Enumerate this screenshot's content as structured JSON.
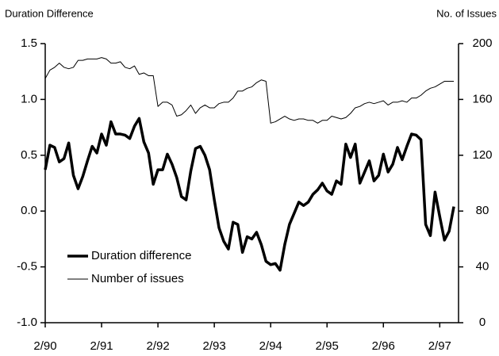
{
  "chart_data": {
    "type": "line",
    "y_label": "Duration Difference",
    "y2_label": "No. of Issues",
    "categories": [
      "2/90",
      null,
      null,
      null,
      null,
      null,
      null,
      null,
      null,
      null,
      null,
      null,
      "2/91",
      null,
      null,
      null,
      null,
      null,
      null,
      null,
      null,
      null,
      null,
      null,
      "2/92",
      null,
      null,
      null,
      null,
      null,
      null,
      null,
      null,
      null,
      null,
      null,
      "2/93",
      null,
      null,
      null,
      null,
      null,
      null,
      null,
      null,
      null,
      null,
      null,
      "2/94",
      null,
      null,
      null,
      null,
      null,
      null,
      null,
      null,
      null,
      null,
      null,
      "2/95",
      null,
      null,
      null,
      null,
      null,
      null,
      null,
      null,
      null,
      null,
      null,
      "2/96",
      null,
      null,
      null,
      null,
      null,
      null,
      null,
      null,
      null,
      null,
      null,
      "2/97",
      null,
      null,
      null
    ],
    "series": [
      {
        "name": "Duration difference",
        "color": "#000000",
        "width": 3.5,
        "axis": "y",
        "values": [
          0.37,
          0.59,
          0.57,
          0.44,
          0.47,
          0.61,
          0.32,
          0.2,
          0.31,
          0.45,
          0.58,
          0.52,
          0.69,
          0.59,
          0.8,
          0.69,
          0.69,
          0.68,
          0.65,
          0.76,
          0.83,
          0.62,
          0.52,
          0.24,
          0.37,
          0.37,
          0.51,
          0.42,
          0.3,
          0.13,
          0.1,
          0.36,
          0.56,
          0.58,
          0.5,
          0.37,
          0.1,
          -0.15,
          -0.27,
          -0.34,
          -0.1,
          -0.12,
          -0.37,
          -0.23,
          -0.25,
          -0.19,
          -0.3,
          -0.45,
          -0.48,
          -0.47,
          -0.53,
          -0.3,
          -0.12,
          -0.02,
          0.08,
          0.05,
          0.08,
          0.15,
          0.19,
          0.25,
          0.18,
          0.15,
          0.27,
          0.24,
          0.6,
          0.48,
          0.6,
          0.25,
          0.35,
          0.45,
          0.27,
          0.32,
          0.51,
          0.35,
          0.42,
          0.57,
          0.46,
          0.58,
          0.69,
          0.68,
          0.64,
          -0.12,
          -0.22,
          0.17,
          -0.05,
          -0.26,
          -0.18,
          0.04
        ]
      },
      {
        "name": "Number of issues",
        "color": "#000000",
        "width": 1,
        "axis": "y2",
        "values": [
          175,
          181,
          183,
          186,
          183,
          182,
          183,
          188,
          188,
          189,
          189,
          189,
          190,
          189,
          186,
          186,
          187,
          183,
          182,
          184,
          178,
          179,
          177,
          177,
          155,
          158,
          158,
          156,
          148,
          149,
          152,
          156,
          150,
          154,
          156,
          154,
          154,
          157,
          158,
          158,
          161,
          166,
          166,
          168,
          169,
          172,
          174,
          173,
          143,
          144,
          146,
          148,
          146,
          145,
          146,
          146,
          145,
          145,
          143,
          145,
          145,
          148,
          147,
          146,
          147,
          150,
          154,
          155,
          157,
          158,
          157,
          158,
          159,
          156,
          158,
          158,
          159,
          158,
          161,
          161,
          163,
          166,
          168,
          169,
          171,
          173,
          173,
          173
        ]
      }
    ],
    "ylim": [
      -1.0,
      1.5
    ],
    "yticks": [
      {
        "value": -1.0,
        "label": "-1.0"
      },
      {
        "value": -0.5,
        "label": "-0.5"
      },
      {
        "value": 0,
        "label": "0.0"
      },
      {
        "value": 0.5,
        "label": "0.5"
      },
      {
        "value": 1.0,
        "label": "1.0"
      },
      {
        "value": 1.5,
        "label": "1.5"
      }
    ],
    "y2lim": [
      0,
      200
    ],
    "y2ticks": [
      0,
      40,
      80,
      120,
      160,
      200
    ],
    "legend": "lower left"
  }
}
